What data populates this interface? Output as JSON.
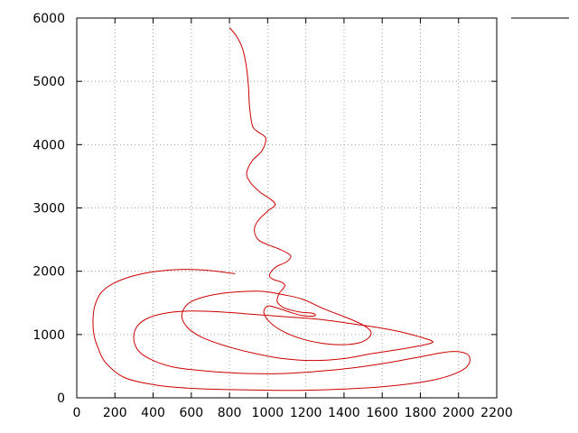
{
  "chart_data": {
    "type": "line",
    "title": "",
    "xlabel": "",
    "ylabel": "",
    "xlim": [
      0,
      2200
    ],
    "ylim": [
      0,
      6000
    ],
    "xticks": [
      0,
      200,
      400,
      600,
      800,
      1000,
      1200,
      1400,
      1600,
      1800,
      2000,
      2200
    ],
    "yticks": [
      0,
      1000,
      2000,
      3000,
      4000,
      5000,
      6000
    ],
    "grid": true,
    "legend": "top-right",
    "series": [
      {
        "color": "#cc0000",
        "x": [
          800,
          840,
          870,
          890,
          900,
          905,
          920,
          950,
          990,
          970,
          920,
          890,
          910,
          960,
          1010,
          1040,
          1000,
          950,
          930,
          950,
          1000,
          1060,
          1120,
          1100,
          1050,
          1020,
          1010,
          1030,
          1070,
          1090,
          1080,
          1060,
          1050,
          1080,
          1130,
          1180,
          1230,
          1250,
          1240,
          1220,
          1180,
          1120,
          1050,
          1000,
          980,
          1010,
          1080,
          1180,
          1290,
          1400,
          1480,
          1530,
          1540,
          1500,
          1420,
          1300,
          1180,
          1080,
          980,
          880,
          760,
          650,
          580,
          550,
          580,
          660,
          780,
          920,
          1080,
          1240,
          1400,
          1550,
          1700,
          1810,
          1860,
          1860,
          1800,
          1700,
          1580,
          1420,
          1270,
          1100,
          920,
          740,
          580,
          450,
          360,
          310,
          300,
          330,
          400,
          500,
          620,
          780,
          950,
          1130,
          1310,
          1490,
          1660,
          1820,
          1960,
          2040,
          2060,
          2040,
          1980,
          1880,
          1740,
          1580,
          1400,
          1200,
          1000,
          800,
          600,
          420,
          250,
          150,
          110,
          90,
          85,
          95,
          130,
          200,
          300,
          420,
          560,
          700,
          830
        ],
        "y": [
          5850,
          5700,
          5500,
          5200,
          4900,
          4600,
          4300,
          4200,
          4100,
          3900,
          3750,
          3550,
          3400,
          3250,
          3150,
          3050,
          2950,
          2800,
          2650,
          2500,
          2420,
          2350,
          2250,
          2150,
          2080,
          2000,
          1920,
          1870,
          1830,
          1780,
          1720,
          1650,
          1520,
          1430,
          1380,
          1350,
          1340,
          1310,
          1290,
          1290,
          1300,
          1350,
          1420,
          1450,
          1350,
          1200,
          1050,
          930,
          860,
          840,
          870,
          950,
          1050,
          1150,
          1260,
          1400,
          1560,
          1630,
          1680,
          1680,
          1650,
          1580,
          1480,
          1300,
          1110,
          950,
          820,
          710,
          620,
          590,
          620,
          700,
          770,
          830,
          870,
          900,
          960,
          1040,
          1110,
          1180,
          1240,
          1280,
          1320,
          1360,
          1370,
          1330,
          1240,
          1100,
          900,
          720,
          590,
          490,
          440,
          400,
          380,
          390,
          430,
          490,
          570,
          660,
          730,
          700,
          600,
          480,
          380,
          290,
          220,
          170,
          140,
          120,
          120,
          130,
          150,
          200,
          320,
          560,
          800,
          1000,
          1230,
          1460,
          1670,
          1820,
          1930,
          2000,
          2030,
          2010,
          1960
        ]
      }
    ]
  }
}
